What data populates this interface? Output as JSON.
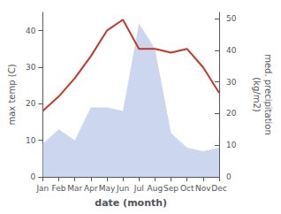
{
  "chart_data": {
    "type": "line",
    "categories": [
      "Jan",
      "Feb",
      "Mar",
      "Apr",
      "May",
      "Jun",
      "Jul",
      "Aug",
      "Sep",
      "Oct",
      "Nov",
      "Dec"
    ],
    "series": [
      {
        "type": "area",
        "color": "#b8c4e8",
        "values": [
          9,
          13,
          10,
          19,
          19,
          18,
          42,
          35,
          12,
          8,
          7,
          8
        ]
      },
      {
        "type": "line",
        "color": "#c0392b",
        "values": [
          18,
          22,
          27,
          33,
          40,
          43,
          35,
          35,
          34,
          35,
          30,
          23
        ]
      }
    ],
    "xlabel": "date (month)",
    "ylabel": "max temp (C)",
    "y2label": "med. precipitation\n(kg/m2)",
    "ylim": [
      0,
      45
    ],
    "yticks": [
      0,
      10,
      20,
      30,
      40
    ],
    "y2lim": [
      0,
      52
    ],
    "y2ticks": [
      0,
      10,
      20,
      30,
      40,
      50
    ],
    "grid": false
  }
}
